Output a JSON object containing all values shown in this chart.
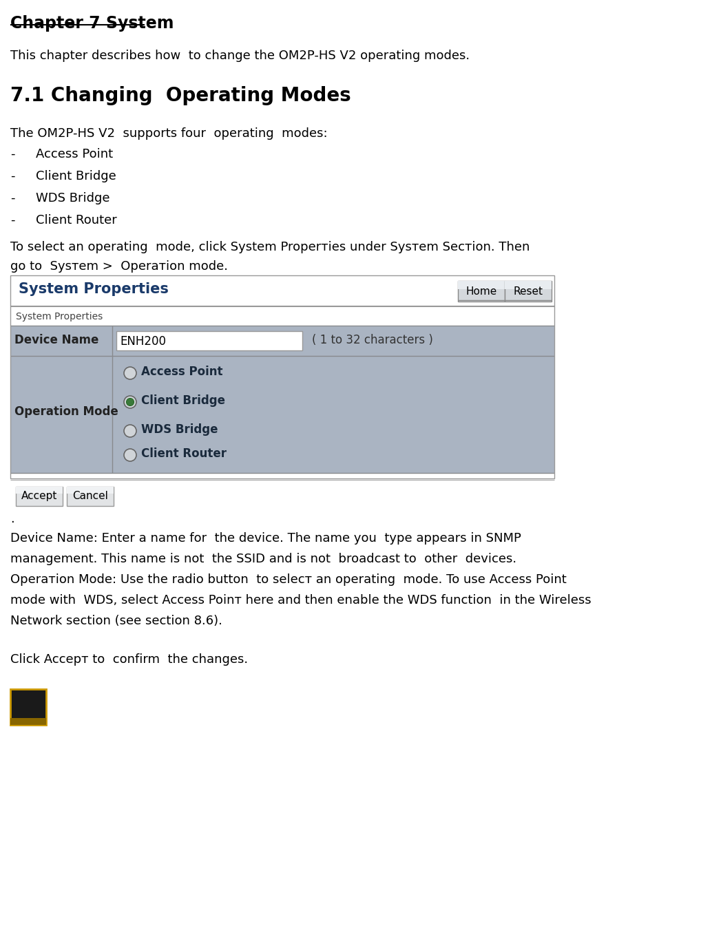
{
  "bg_color": "#ffffff",
  "title": "Chapter 7 System",
  "subtitle": "This chapter describes how  to change the OM2P-HS V2 operating modes.",
  "section_title": "7.1 Changing  Operating Modes",
  "para1": "The OM2P-HS V2  supports four  operating  modes:",
  "bullet_items": [
    "Access Point",
    "Client Bridge",
    "WDS Bridge",
    "Client Router"
  ],
  "para2_line1": "To select an operating  mode, click System Properтies under Sysтem Secтion. Then",
  "para2_line2": "go to  Sysтem >  Operaтion mode.",
  "ui_title": "System Properties",
  "btn1": "Home",
  "btn2": "Reset",
  "form_section_label": "System Properties",
  "row1_label": "Device Name",
  "row1_input": "ENH200",
  "row1_note": "( 1 to 32 characters )",
  "row2_label": "Operation Mode",
  "op_modes": [
    "Access Point",
    "Client Bridge",
    "WDS Bridge",
    "Client Router"
  ],
  "op_selected": 1,
  "accept_btn": "Accept",
  "cancel_btn": "Cancel",
  "dot_text": ".",
  "desc1_line1": "Device Name: Enter a name for  the device. The name you  type appears in SNMP",
  "desc1_line2": "management. This name is not  the SSID and is not  broadcast to  other  devices.",
  "desc2_line1": "Operaтion Mode: Use the radio button  to selecт an operating  mode. To use Access Point",
  "desc2_line2": "mode with  WDS, select Access Poinт here and then enable the WDS function  in the Wireless",
  "desc2_line3": "Network section (see section 8.6).",
  "click_line": "Click Accepт to  confirm  the changes.",
  "table_row_bg": "#aab4c2",
  "table_border": "#888a8e",
  "header_bg": "#ffffff",
  "header_title_color": "#1a3a6a",
  "ui_border_color": "#999999",
  "note_bg": "#1a1a1a",
  "note_text_color": "#ffcc00",
  "note_border_color": "#cc9900"
}
